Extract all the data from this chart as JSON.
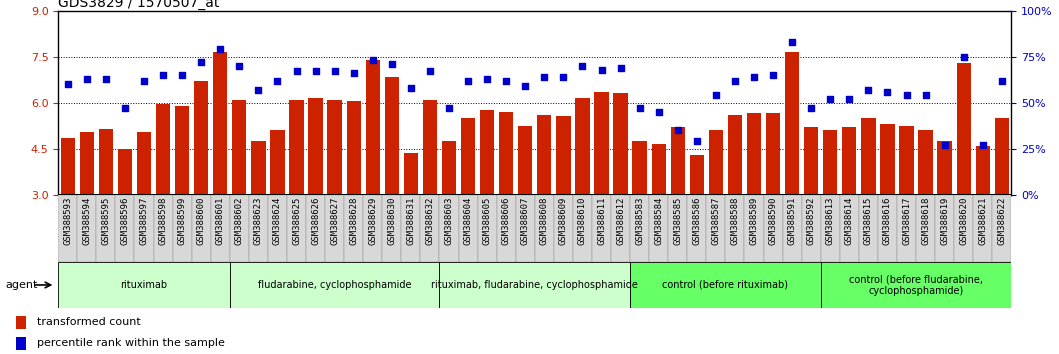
{
  "title": "GDS3829 / 1570507_at",
  "samples": [
    "GSM388593",
    "GSM388594",
    "GSM388595",
    "GSM388596",
    "GSM388597",
    "GSM388598",
    "GSM388599",
    "GSM388600",
    "GSM388601",
    "GSM388602",
    "GSM388623",
    "GSM388624",
    "GSM388625",
    "GSM388626",
    "GSM388627",
    "GSM388628",
    "GSM388629",
    "GSM388630",
    "GSM388631",
    "GSM388632",
    "GSM388603",
    "GSM388604",
    "GSM388605",
    "GSM388606",
    "GSM388607",
    "GSM388608",
    "GSM388609",
    "GSM388610",
    "GSM388611",
    "GSM388612",
    "GSM388583",
    "GSM388584",
    "GSM388585",
    "GSM388586",
    "GSM388587",
    "GSM388588",
    "GSM388589",
    "GSM388590",
    "GSM388591",
    "GSM388592",
    "GSM388613",
    "GSM388614",
    "GSM388615",
    "GSM388616",
    "GSM388617",
    "GSM388618",
    "GSM388619",
    "GSM388620",
    "GSM388621",
    "GSM388622"
  ],
  "bar_values": [
    4.85,
    5.05,
    5.15,
    4.5,
    5.05,
    5.95,
    5.9,
    6.7,
    7.65,
    6.1,
    4.75,
    5.1,
    6.1,
    6.15,
    6.1,
    6.05,
    7.4,
    6.85,
    4.35,
    6.1,
    4.75,
    5.5,
    5.75,
    5.7,
    5.25,
    5.6,
    5.55,
    6.15,
    6.35,
    6.3,
    4.75,
    4.65,
    5.2,
    4.3,
    5.1,
    5.6,
    5.65,
    5.65,
    7.65,
    5.2,
    5.1,
    5.2,
    5.5,
    5.3,
    5.25,
    5.1,
    4.75,
    7.3,
    4.6,
    5.5
  ],
  "percentile_values": [
    60,
    63,
    63,
    47,
    62,
    65,
    65,
    72,
    79,
    70,
    57,
    62,
    67,
    67,
    67,
    66,
    73,
    71,
    58,
    67,
    47,
    62,
    63,
    62,
    59,
    64,
    64,
    70,
    68,
    69,
    47,
    45,
    35,
    29,
    54,
    62,
    64,
    65,
    83,
    47,
    52,
    52,
    57,
    56,
    54,
    54,
    27,
    75,
    27,
    62
  ],
  "groups": [
    {
      "label": "rituximab",
      "start": 0,
      "end": 8,
      "color": "#ccffcc"
    },
    {
      "label": "fludarabine, cyclophosphamide",
      "start": 9,
      "end": 19,
      "color": "#ccffcc"
    },
    {
      "label": "rituximab, fludarabine, cyclophosphamide",
      "start": 20,
      "end": 29,
      "color": "#ccffcc"
    },
    {
      "label": "control (before rituximab)",
      "start": 30,
      "end": 39,
      "color": "#66ff66"
    },
    {
      "label": "control (before fludarabine,\ncyclophosphamide)",
      "start": 40,
      "end": 49,
      "color": "#66ff66"
    }
  ],
  "ylim_left": [
    3,
    9
  ],
  "ylim_right": [
    0,
    100
  ],
  "yticks_left": [
    3,
    4.5,
    6,
    7.5,
    9
  ],
  "yticks_right": [
    0,
    25,
    50,
    75,
    100
  ],
  "bar_color": "#cc2200",
  "dot_color": "#0000cc",
  "background_color": "#ffffff",
  "title_fontsize": 10,
  "tick_fontsize": 6.5
}
